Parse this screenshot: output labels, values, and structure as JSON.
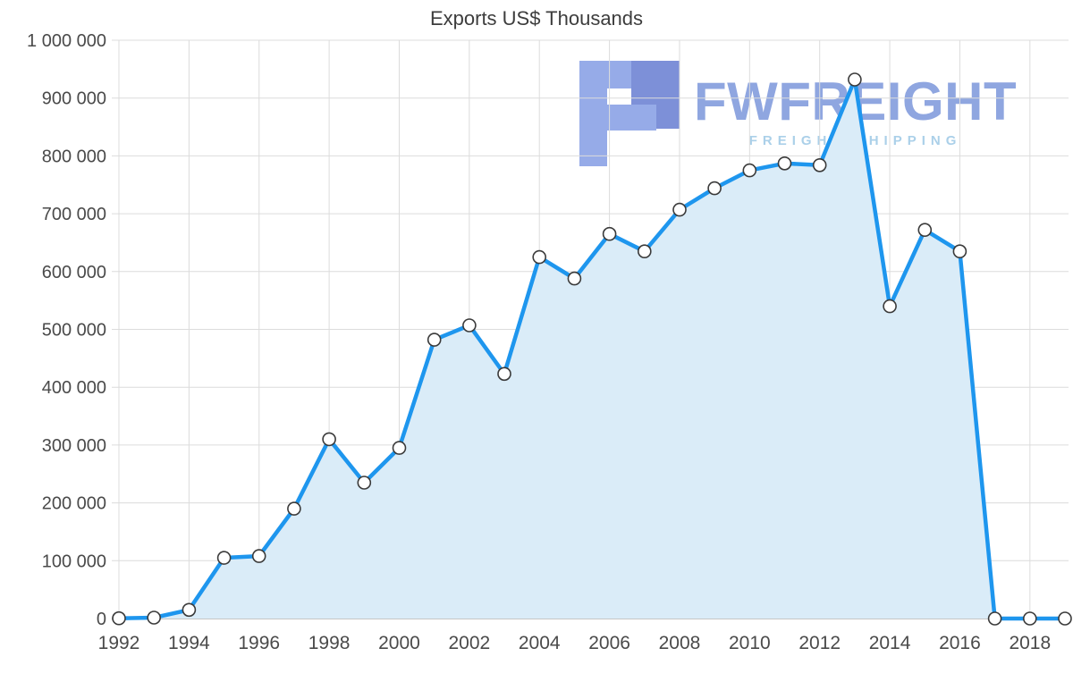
{
  "chart": {
    "title": "Exports US$ Thousands",
    "watermark": {
      "brand": "FWFREIGHT",
      "tagline": "FREIGHT SHIPPING"
    },
    "colors": {
      "line": "#1e96ee",
      "fill": "#daecf8",
      "marker_fill": "#ffffff",
      "marker_stroke": "#3a3a3a",
      "grid": "#dcdcdc",
      "axis_line": "#b3b3b3",
      "axis_text": "#4a4a4a",
      "logo_light": "#96abe8",
      "logo_dark": "#7d90d8",
      "watermark_brand": "#8fa6e0",
      "watermark_tagline": "#abd0e9"
    }
  },
  "chart_data": {
    "type": "area",
    "title": "Exports US$ Thousands",
    "series_name": "Exports US$ Thousands",
    "x": [
      1992,
      1993,
      1994,
      1995,
      1996,
      1997,
      1998,
      1999,
      2000,
      2001,
      2002,
      2003,
      2004,
      2005,
      2006,
      2007,
      2008,
      2009,
      2010,
      2011,
      2012,
      2013,
      2014,
      2015,
      2016,
      2017,
      2018,
      2019
    ],
    "values": [
      500,
      1500,
      15000,
      105000,
      108000,
      190000,
      310000,
      235000,
      295000,
      482000,
      507000,
      423000,
      625000,
      588000,
      665000,
      635000,
      707000,
      744000,
      775000,
      787000,
      784000,
      932000,
      540000,
      672000,
      635000,
      0,
      0,
      0
    ],
    "xlabel": "",
    "ylabel": "",
    "ylim": [
      0,
      1000000
    ],
    "xlim": [
      1992,
      2019
    ],
    "yticks": [
      0,
      100000,
      200000,
      300000,
      400000,
      500000,
      600000,
      700000,
      800000,
      900000,
      1000000
    ],
    "ytick_labels": [
      "0",
      "100 000",
      "200 000",
      "300 000",
      "400 000",
      "500 000",
      "600 000",
      "700 000",
      "800 000",
      "900 000",
      "1 000 000"
    ],
    "xticks": [
      1992,
      1994,
      1996,
      1998,
      2000,
      2002,
      2004,
      2006,
      2008,
      2010,
      2012,
      2014,
      2016,
      2018
    ],
    "grid": true,
    "legend": false,
    "marker": "circle"
  }
}
